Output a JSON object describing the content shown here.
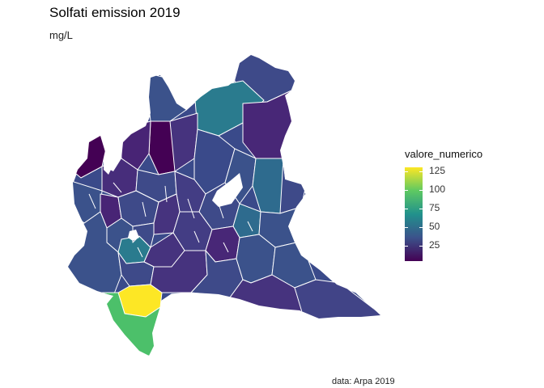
{
  "title": "Solfati emission 2019",
  "subtitle": "mg/L",
  "caption": "data: Arpa 2019",
  "legend": {
    "title": "valore_numerico",
    "ticks": [
      {
        "value": 125,
        "label": "125"
      },
      {
        "value": 100,
        "label": "100"
      },
      {
        "value": 75,
        "label": "75"
      },
      {
        "value": 50,
        "label": "50"
      },
      {
        "value": 25,
        "label": "25"
      }
    ],
    "range": [
      5,
      130
    ],
    "colors": [
      "#440154",
      "#3b528b",
      "#21918c",
      "#5ec962",
      "#fde725"
    ]
  },
  "map": {
    "region": "Lombardia",
    "scale": "viridis",
    "border_color": "#ffffff",
    "highlight_colors": {
      "max_area": "#fde725",
      "high_area": "#4cc06a",
      "mid_area": "#27788e"
    }
  }
}
